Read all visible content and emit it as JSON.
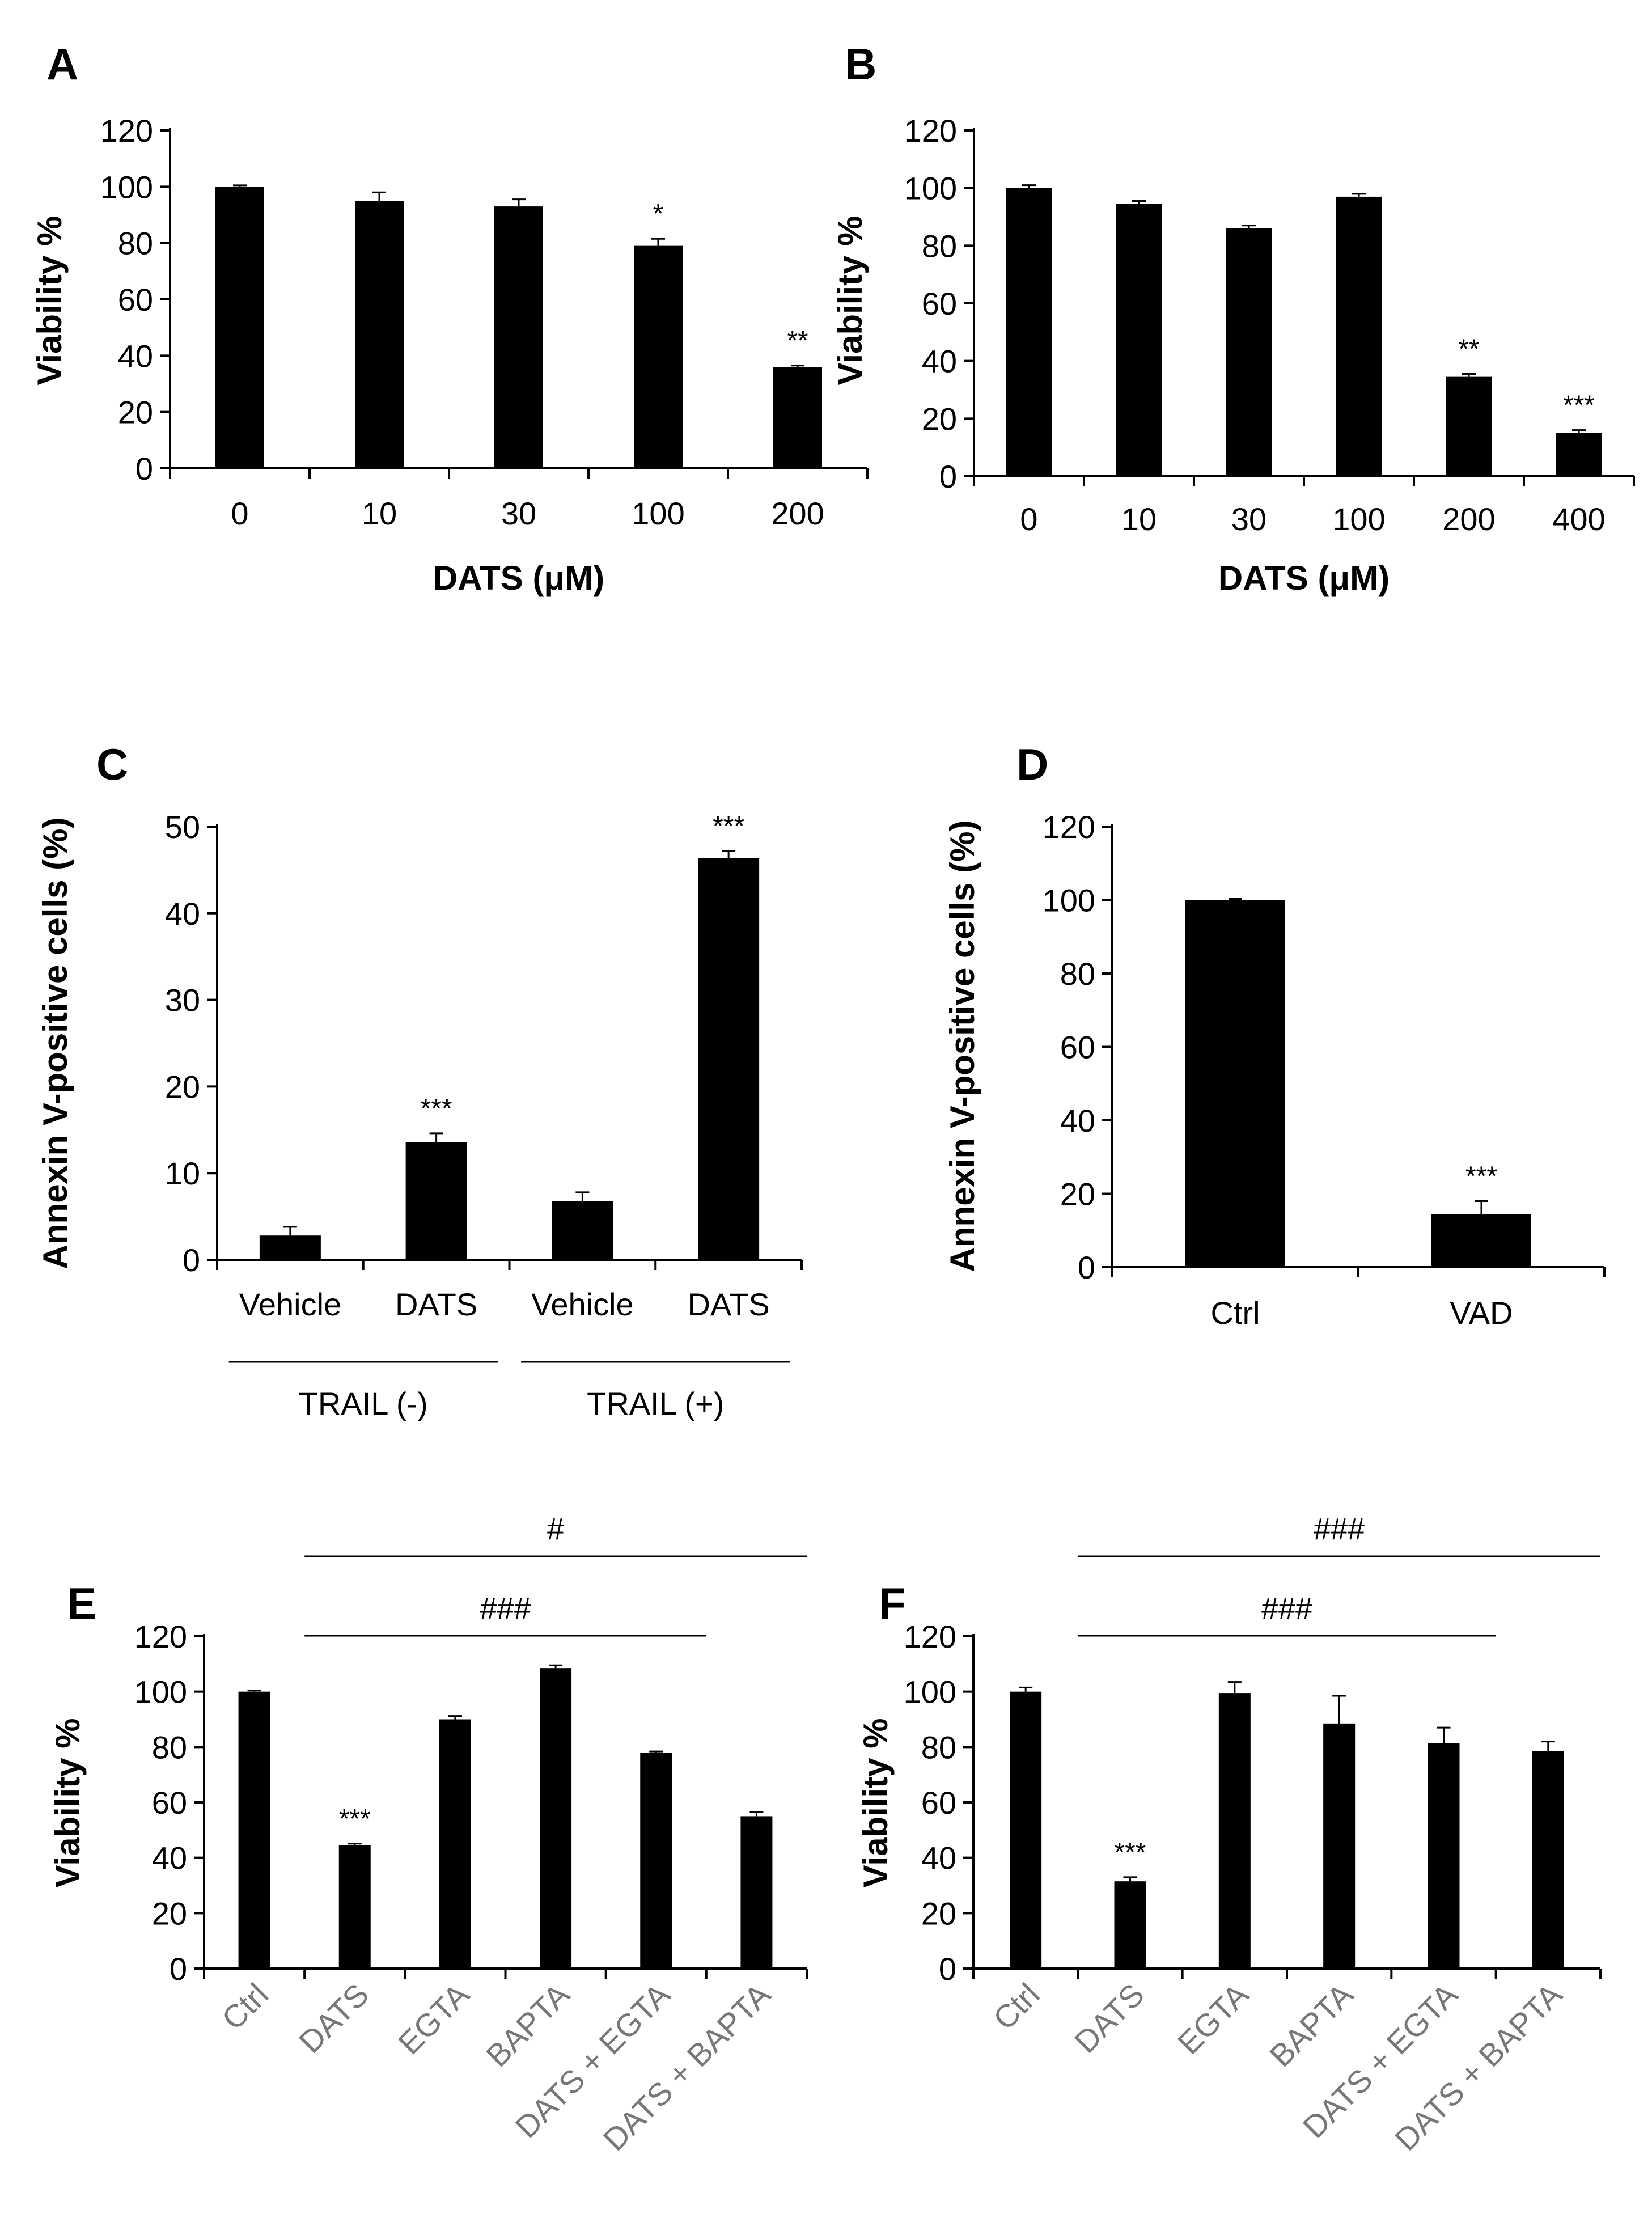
{
  "chart_data": [
    {
      "panel": "A",
      "type": "bar",
      "xlabel": "DATS (μM)",
      "ylabel": "Viability %",
      "ylim": [
        0,
        120
      ],
      "yticks": [
        0,
        20,
        40,
        60,
        80,
        100,
        120
      ],
      "categories": [
        "0",
        "10",
        "30",
        "100",
        "200"
      ],
      "values": [
        100,
        95,
        93,
        79,
        36
      ],
      "errors": [
        0.5,
        3,
        2.5,
        2.5,
        0.5
      ],
      "annotations": [
        "",
        "",
        "",
        "*",
        "**"
      ]
    },
    {
      "panel": "B",
      "type": "bar",
      "xlabel": "DATS (μM)",
      "ylabel": "Viability %",
      "ylim": [
        0,
        120
      ],
      "yticks": [
        0,
        20,
        40,
        60,
        80,
        100,
        120
      ],
      "categories": [
        "0",
        "10",
        "30",
        "100",
        "200",
        "400"
      ],
      "values": [
        100,
        94.5,
        86,
        97,
        34.5,
        15
      ],
      "errors": [
        1,
        1,
        1,
        1,
        1,
        1
      ],
      "annotations": [
        "",
        "",
        "",
        "",
        "**",
        "***"
      ]
    },
    {
      "panel": "C",
      "type": "bar",
      "xlabel": "",
      "ylabel": "Annexin V-positive cells (%)",
      "ylim": [
        0,
        50
      ],
      "yticks": [
        0,
        10,
        20,
        30,
        40,
        50
      ],
      "categories": [
        "Vehicle",
        "DATS",
        "Vehicle",
        "DATS"
      ],
      "values": [
        2.8,
        13.6,
        6.8,
        46.4
      ],
      "errors": [
        1,
        1,
        1,
        0.8
      ],
      "annotations": [
        "",
        "***",
        "",
        "***"
      ],
      "groups": [
        {
          "label": "TRAIL (-)",
          "from": 0,
          "to": 1
        },
        {
          "label": "TRAIL (+)",
          "from": 2,
          "to": 3
        }
      ]
    },
    {
      "panel": "D",
      "type": "bar",
      "xlabel": "",
      "ylabel": "Annexin V-positive cells (%)",
      "ylim": [
        0,
        120
      ],
      "yticks": [
        0,
        20,
        40,
        60,
        80,
        100,
        120
      ],
      "categories": [
        "Ctrl",
        "VAD"
      ],
      "values": [
        100,
        14.5
      ],
      "errors": [
        0.3,
        3.5
      ],
      "annotations": [
        "",
        "***"
      ]
    },
    {
      "panel": "E",
      "type": "bar",
      "xlabel": "",
      "ylabel": "Viability %",
      "ylim": [
        0,
        120
      ],
      "yticks": [
        0,
        20,
        40,
        60,
        80,
        100,
        120
      ],
      "categories": [
        "Ctrl",
        "DATS",
        "EGTA",
        "BAPTA",
        "DATS + EGTA",
        "DATS + BAPTA"
      ],
      "values": [
        100,
        44.5,
        90,
        108.5,
        78,
        55
      ],
      "errors": [
        0.4,
        0.6,
        1.2,
        1,
        0.4,
        1.5
      ],
      "annotations": [
        "",
        "***",
        "",
        "",
        "",
        ""
      ],
      "brackets": [
        {
          "label": "#",
          "from": 1,
          "to": 5
        },
        {
          "label": "###",
          "from": 1,
          "to": 4
        }
      ]
    },
    {
      "panel": "F",
      "type": "bar",
      "xlabel": "",
      "ylabel": "Viability %",
      "ylim": [
        0,
        120
      ],
      "yticks": [
        0,
        20,
        40,
        60,
        80,
        100,
        120
      ],
      "categories": [
        "Ctrl",
        "DATS",
        "EGTA",
        "BAPTA",
        "DATS + EGTA",
        "DATS + BAPTA"
      ],
      "values": [
        100,
        31.5,
        99.5,
        88.5,
        81.5,
        78.5
      ],
      "errors": [
        1.5,
        1.5,
        4,
        10,
        5.5,
        3.5
      ],
      "annotations": [
        "",
        "***",
        "",
        "",
        "",
        ""
      ],
      "brackets": [
        {
          "label": "###",
          "from": 1,
          "to": 5
        },
        {
          "label": "###",
          "from": 1,
          "to": 4
        }
      ]
    }
  ]
}
